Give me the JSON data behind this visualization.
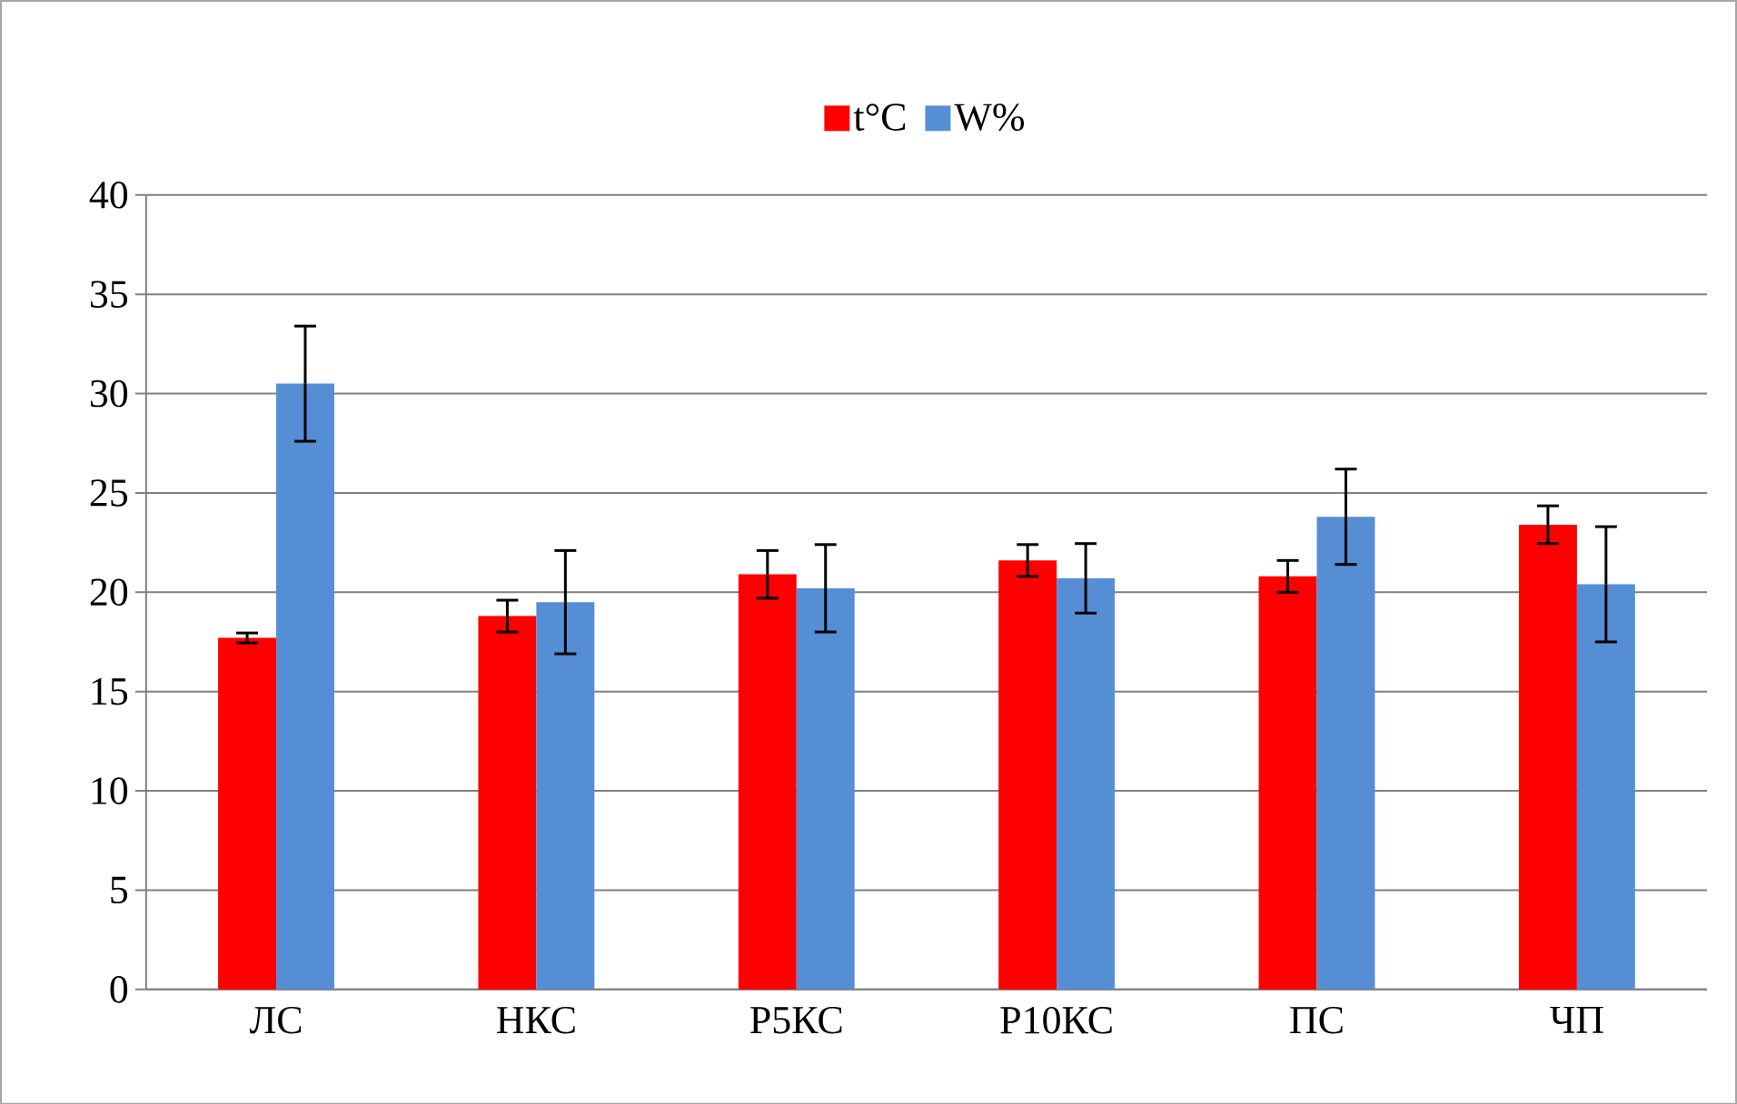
{
  "chart_data": {
    "type": "bar",
    "categories": [
      "ЛС",
      "НКС",
      "Р5КС",
      "Р10КС",
      "ПС",
      "ЧП"
    ],
    "series": [
      {
        "name": "t°C",
        "color": "#ff0000",
        "values": [
          17.7,
          18.8,
          20.9,
          21.6,
          20.8,
          23.4
        ],
        "errors": [
          0.25,
          0.8,
          1.2,
          0.8,
          0.8,
          0.95
        ]
      },
      {
        "name": "W%",
        "color": "#558ed5",
        "values": [
          30.5,
          19.5,
          20.2,
          20.7,
          23.8,
          20.4
        ],
        "errors": [
          2.9,
          2.6,
          2.2,
          1.75,
          2.4,
          2.9
        ]
      }
    ],
    "ylim": [
      0,
      40
    ],
    "yticks": [
      0,
      5,
      10,
      15,
      20,
      25,
      30,
      35,
      40
    ],
    "grid": "y",
    "legend": "top"
  }
}
